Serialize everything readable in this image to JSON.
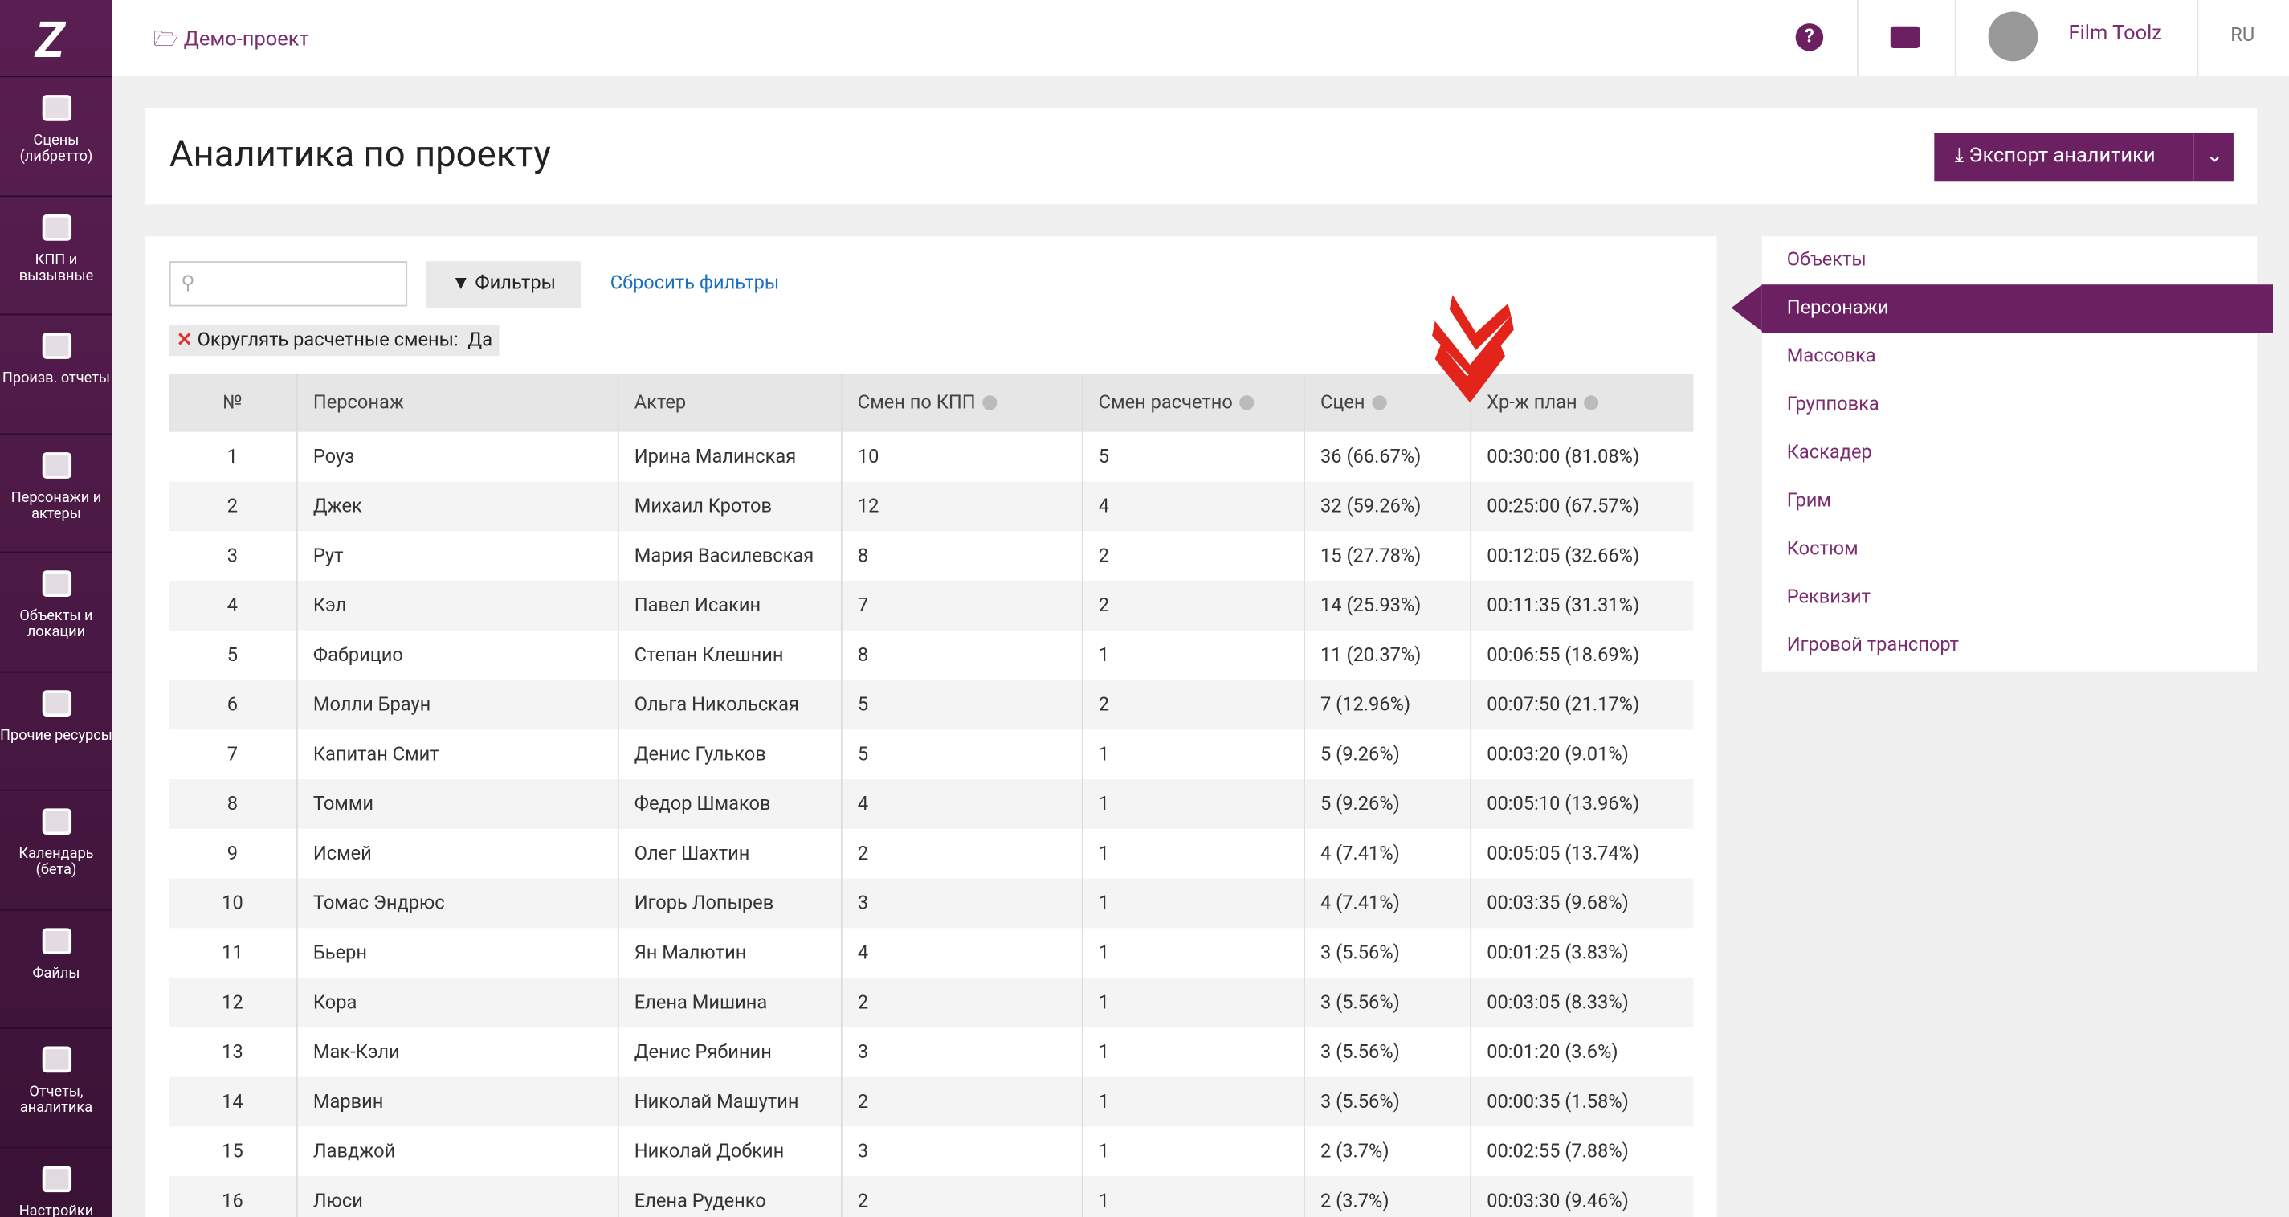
{
  "breadcrumb": "Демо-проект",
  "user": "Film Toolz",
  "lang": "RU",
  "sidebar": [
    "Сцены (либретто)",
    "КПП и вызывные",
    "Произв. отчеты",
    "Персонажи и актеры",
    "Объекты и локации",
    "Прочие ресурсы",
    "Календарь (бета)",
    "Файлы",
    "Отчеты, аналитика",
    "Настройки"
  ],
  "title": "Аналитика по проекту",
  "export_button": "Экспорт аналитики",
  "filters_button": "Фильтры",
  "reset_filters": "Сбросить фильтры",
  "tag": "Округлять расчетные смены:  Да",
  "table": {
    "columns": [
      "№",
      "Персонаж",
      "Актер",
      "Смен по КПП",
      "Смен расчетно",
      "Сцен",
      "Хр-ж план"
    ],
    "rows": [
      [
        1,
        "Роуз",
        "Ирина Малинская",
        10,
        5,
        "36 (66.67%)",
        "00:30:00 (81.08%)"
      ],
      [
        2,
        "Джек",
        "Михаил Кротов",
        12,
        4,
        "32 (59.26%)",
        "00:25:00 (67.57%)"
      ],
      [
        3,
        "Рут",
        "Мария Василевская",
        8,
        2,
        "15 (27.78%)",
        "00:12:05 (32.66%)"
      ],
      [
        4,
        "Кэл",
        "Павел Исакин",
        7,
        2,
        "14 (25.93%)",
        "00:11:35 (31.31%)"
      ],
      [
        5,
        "Фабрицио",
        "Степан Клешнин",
        8,
        1,
        "11 (20.37%)",
        "00:06:55 (18.69%)"
      ],
      [
        6,
        "Молли Браун",
        "Ольга Никольская",
        5,
        2,
        "7 (12.96%)",
        "00:07:50 (21.17%)"
      ],
      [
        7,
        "Капитан Смит",
        "Денис Гульков",
        5,
        1,
        "5 (9.26%)",
        "00:03:20 (9.01%)"
      ],
      [
        8,
        "Томми",
        "Федор Шмаков",
        4,
        1,
        "5 (9.26%)",
        "00:05:10 (13.96%)"
      ],
      [
        9,
        "Исмей",
        "Олег Шахтин",
        2,
        1,
        "4 (7.41%)",
        "00:05:05 (13.74%)"
      ],
      [
        10,
        "Томас Эндрюс",
        "Игорь Лопырев",
        3,
        1,
        "4 (7.41%)",
        "00:03:35 (9.68%)"
      ],
      [
        11,
        "Бьерн",
        "Ян Малютин",
        4,
        1,
        "3 (5.56%)",
        "00:01:25 (3.83%)"
      ],
      [
        12,
        "Кора",
        "Елена Мишина",
        2,
        1,
        "3 (5.56%)",
        "00:03:05 (8.33%)"
      ],
      [
        13,
        "Мак-Кэли",
        "Денис Рябинин",
        3,
        1,
        "3 (5.56%)",
        "00:01:20 (3.6%)"
      ],
      [
        14,
        "Марвин",
        "Николай Машутин",
        2,
        1,
        "3 (5.56%)",
        "00:00:35 (1.58%)"
      ],
      [
        15,
        "Лавджой",
        "Николай Добкин",
        3,
        1,
        "2 (3.7%)",
        "00:02:55 (7.88%)"
      ],
      [
        16,
        "Люси",
        "Елена Руденко",
        2,
        1,
        "2 (3.7%)",
        "00:03:30 (9.46%)"
      ]
    ]
  },
  "menu": [
    "Объекты",
    "Персонажи",
    "Массовка",
    "Групповка",
    "Каскадер",
    "Грим",
    "Костюм",
    "Реквизит",
    "Игровой транспорт"
  ]
}
